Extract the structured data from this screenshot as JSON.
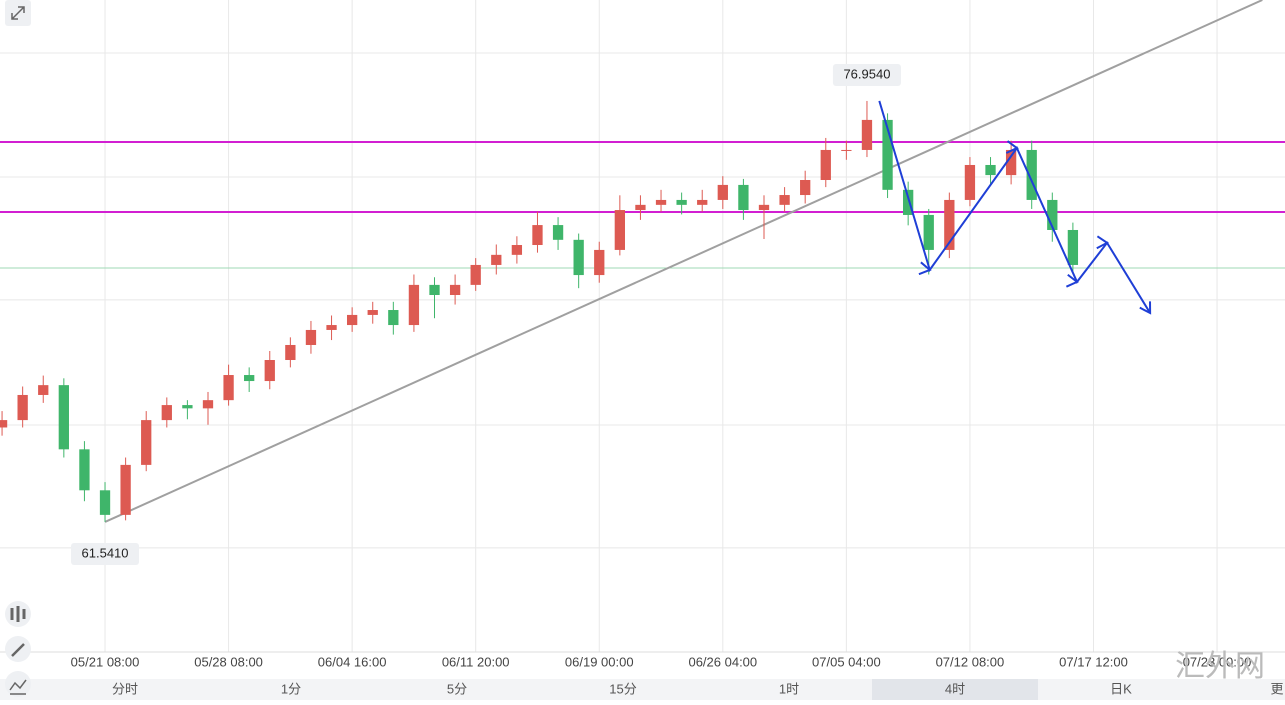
{
  "chart_data": {
    "type": "candlestick",
    "open": [
      65.0,
      65.27,
      66.19,
      66.55,
      64.2,
      62.7,
      61.8,
      63.63,
      65.27,
      65.82,
      65.7,
      66.0,
      66.92,
      66.7,
      67.47,
      68.02,
      68.57,
      68.75,
      69.12,
      69.3,
      68.75,
      70.22,
      69.85,
      70.22,
      70.95,
      71.32,
      71.68,
      72.41,
      71.87,
      70.58,
      71.5,
      72.96,
      73.15,
      73.33,
      73.15,
      73.33,
      73.88,
      72.96,
      73.15,
      73.51,
      74.06,
      75.16,
      75.16,
      76.26,
      73.7,
      72.78,
      71.5,
      73.33,
      74.61,
      74.24,
      75.16,
      73.33,
      72.23
    ],
    "high": [
      65.6,
      66.5,
      66.9,
      66.8,
      64.5,
      63.0,
      63.9,
      65.6,
      66.1,
      66.0,
      66.3,
      67.3,
      67.2,
      67.8,
      68.3,
      68.9,
      69.1,
      69.4,
      69.6,
      69.6,
      70.6,
      70.5,
      70.6,
      71.2,
      71.7,
      72.0,
      72.9,
      72.7,
      72.1,
      71.8,
      73.5,
      73.5,
      73.7,
      73.6,
      73.7,
      74.2,
      74.1,
      73.5,
      73.8,
      74.4,
      75.6,
      75.5,
      76.954,
      76.5,
      74.0,
      73.0,
      73.6,
      74.9,
      74.9,
      75.5,
      75.5,
      73.6,
      72.5
    ],
    "low": [
      64.7,
      65.0,
      65.9,
      63.9,
      62.3,
      61.541,
      61.6,
      63.4,
      65.0,
      65.3,
      65.1,
      65.8,
      66.3,
      66.4,
      67.2,
      67.7,
      68.2,
      68.5,
      68.8,
      68.4,
      68.5,
      69.0,
      69.5,
      70.0,
      70.6,
      71.0,
      71.4,
      71.5,
      70.1,
      70.3,
      71.3,
      72.6,
      72.9,
      72.8,
      72.9,
      73.0,
      72.6,
      71.9,
      72.9,
      73.2,
      73.8,
      74.8,
      74.9,
      73.4,
      72.4,
      70.6,
      71.2,
      73.1,
      73.9,
      73.9,
      73.0,
      71.8,
      70.7
    ],
    "close": [
      65.27,
      66.19,
      66.55,
      64.2,
      62.7,
      61.8,
      63.63,
      65.27,
      65.82,
      65.7,
      66.0,
      66.92,
      66.7,
      67.47,
      68.02,
      68.57,
      68.75,
      69.12,
      69.3,
      68.75,
      70.22,
      69.85,
      70.22,
      70.95,
      71.32,
      71.68,
      72.41,
      71.87,
      70.58,
      71.5,
      72.96,
      73.15,
      73.33,
      73.15,
      73.33,
      73.88,
      72.96,
      73.15,
      73.51,
      74.06,
      75.16,
      75.16,
      76.26,
      73.7,
      72.78,
      71.5,
      73.33,
      74.61,
      74.24,
      75.16,
      73.33,
      72.23,
      70.95
    ],
    "up_color": "#dd5a52",
    "down_color": "#3fb56a",
    "xlim": [
      -0.1,
      62.3
    ],
    "ylim": [
      56.78,
      80.65
    ],
    "xticks": [
      {
        "value": 5,
        "label": "05/21 08:00"
      },
      {
        "value": 11,
        "label": "05/28 08:00"
      },
      {
        "value": 17,
        "label": "06/04 16:00"
      },
      {
        "value": 23,
        "label": "06/11 20:00"
      },
      {
        "value": 29,
        "label": "06/19 00:00"
      },
      {
        "value": 35,
        "label": "06/26 04:00"
      },
      {
        "value": 41,
        "label": "07/05 04:00"
      },
      {
        "value": 47,
        "label": "07/12 08:00"
      },
      {
        "value": 53,
        "label": "07/17 12:00"
      },
      {
        "value": 59,
        "label": "07/23 00:00"
      }
    ],
    "yticks": [
      78.71,
      74.17,
      69.67,
      65.09,
      60.59
    ],
    "grid": true,
    "max_label": {
      "value": 76.954,
      "label": "76.9540"
    },
    "min_label": {
      "value": 61.541,
      "label": "61.5410"
    },
    "hlines": [
      {
        "value": 75.453,
        "color": "#d21fd2"
      },
      {
        "value": 72.89,
        "color": "#d21fd2"
      },
      {
        "value": 70.84,
        "color": "#9fd9b4"
      }
    ],
    "trendline": {
      "x": [
        5,
        61.2
      ],
      "y": [
        61.541,
        80.65
      ],
      "color": "#a0a0a0"
    },
    "arrows": {
      "x": [
        42.6,
        45.05,
        49.28,
        52.2,
        53.66,
        55.75
      ],
      "y": [
        76.954,
        70.77,
        75.23,
        70.33,
        71.76,
        69.19
      ],
      "color": "#1f3fd6"
    }
  },
  "tabs": [
    "分时",
    "1分",
    "5分",
    "15分",
    "1时",
    "4时",
    "日K",
    "更"
  ],
  "active_tab": 5,
  "watermark": "汇外网"
}
